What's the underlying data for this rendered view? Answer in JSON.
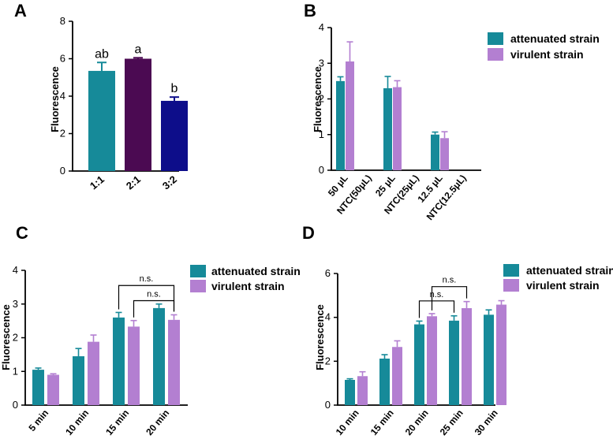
{
  "chart_data": [
    {
      "panel": "A",
      "type": "bar",
      "ylabel": "Fluorescence",
      "ylim": [
        0,
        8
      ],
      "yticks": [
        "0",
        "2",
        "4",
        "6",
        "8"
      ],
      "categories": [
        "1:1",
        "2:1",
        "3:2"
      ],
      "values": [
        5.35,
        6.0,
        3.75
      ],
      "errors": [
        0.45,
        0.05,
        0.2
      ],
      "colors": [
        "#168a99",
        "#4b0a52",
        "#0d0d8a"
      ],
      "sig_letters": [
        "ab",
        "a",
        "b"
      ]
    },
    {
      "panel": "B",
      "type": "bar",
      "ylabel": "Fluorescence",
      "ylim": [
        0,
        4
      ],
      "yticks": [
        "0",
        "1",
        "2",
        "3",
        "4"
      ],
      "categories": [
        "50 μL",
        "NTC(50μL)",
        "25 μL",
        "NTC(25μL)",
        "12.5 μL",
        "NTC(12.5μL)"
      ],
      "series": [
        {
          "name": "attenuated strain",
          "color": "#168a99",
          "values": [
            2.5,
            0,
            2.3,
            0,
            1.0,
            0
          ],
          "errors": [
            0.12,
            0,
            0.33,
            0,
            0.07,
            0
          ]
        },
        {
          "name": "virulent strain",
          "color": "#b37fd1",
          "values": [
            3.05,
            0,
            2.33,
            0,
            0.9,
            0
          ],
          "errors": [
            0.55,
            0,
            0.18,
            0,
            0.18,
            0
          ]
        }
      ],
      "legend": [
        "attenuated strain",
        "virulent strain"
      ]
    },
    {
      "panel": "C",
      "type": "bar",
      "ylabel": "Fluorescence",
      "ylim": [
        0,
        4
      ],
      "yticks": [
        "0",
        "1",
        "2",
        "3",
        "4"
      ],
      "categories": [
        "5 min",
        "10 min",
        "15 min",
        "20 min"
      ],
      "series": [
        {
          "name": "attenuated strain",
          "color": "#168a99",
          "values": [
            1.05,
            1.45,
            2.6,
            2.88
          ],
          "errors": [
            0.05,
            0.23,
            0.15,
            0.12
          ]
        },
        {
          "name": "virulent strain",
          "color": "#b37fd1",
          "values": [
            0.9,
            1.88,
            2.33,
            2.53
          ],
          "errors": [
            0.03,
            0.2,
            0.18,
            0.15
          ]
        }
      ],
      "annotations": [
        {
          "label": "n.s.",
          "from_group": 2,
          "from_series": 0,
          "to_group": 3,
          "to_series": 1,
          "y": 3.55
        },
        {
          "label": "n.s.",
          "from_group": 2,
          "from_series": 1,
          "to_group": 3,
          "to_series": 1,
          "y": 3.1
        }
      ],
      "legend": [
        "attenuated strain",
        "virulent strain"
      ]
    },
    {
      "panel": "D",
      "type": "bar",
      "ylabel": "Fluorescence",
      "ylim": [
        0,
        6
      ],
      "yticks": [
        "0",
        "2",
        "4",
        "6"
      ],
      "categories": [
        "10 min",
        "15 min",
        "20 min",
        "25 min",
        "30 min"
      ],
      "series": [
        {
          "name": "attenuated strain",
          "color": "#168a99",
          "values": [
            1.15,
            2.12,
            3.68,
            3.85,
            4.12
          ],
          "errors": [
            0.05,
            0.18,
            0.15,
            0.22,
            0.22
          ]
        },
        {
          "name": "virulent strain",
          "color": "#b37fd1",
          "values": [
            1.32,
            2.65,
            4.05,
            4.42,
            4.58
          ],
          "errors": [
            0.2,
            0.28,
            0.12,
            0.3,
            0.18
          ]
        }
      ],
      "annotations": [
        {
          "label": "n.s.",
          "from_group": 2,
          "from_series": 1,
          "to_group": 3,
          "to_series": 1,
          "y": 5.4
        },
        {
          "label": "n.s.",
          "from_group": 2,
          "from_series": 0,
          "to_group": 3,
          "to_series": 0,
          "y": 4.75
        }
      ],
      "legend": [
        "attenuated strain",
        "virulent strain"
      ]
    }
  ]
}
